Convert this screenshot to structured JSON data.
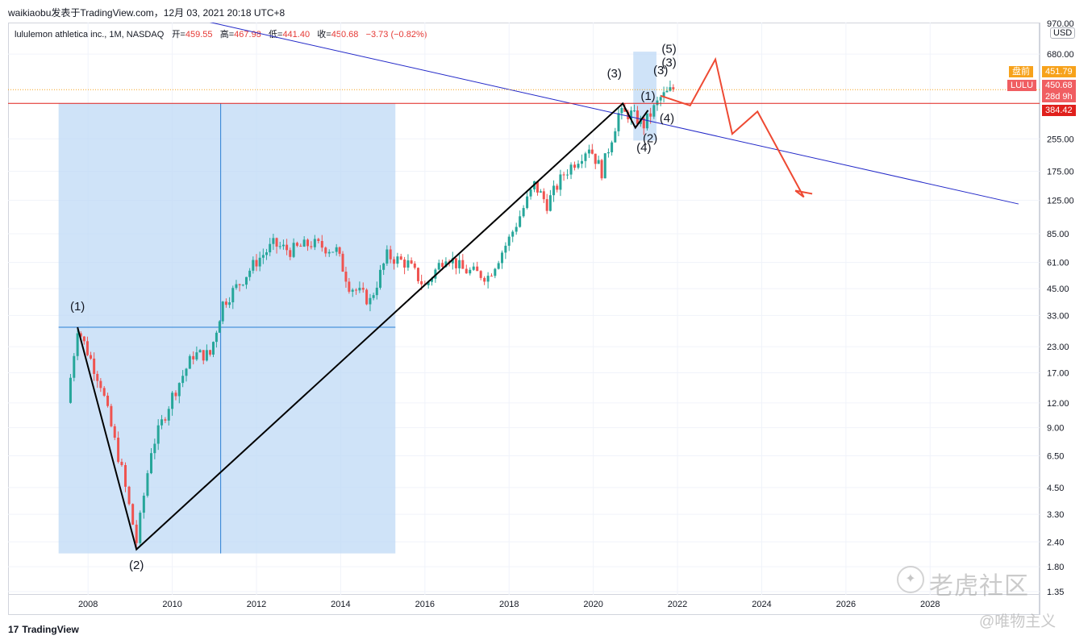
{
  "header": {
    "publish_line": "waikiaobu发表于TradingView.com，12月 03, 2021 20:18 UTC+8"
  },
  "symbol": {
    "name": "lululemon athletica inc., 1M, NASDAQ",
    "open_label": "开=",
    "open_value": "459.55",
    "high_label": "高=",
    "high_value": "467.98",
    "low_label": "低=",
    "low_value": "441.40",
    "close_label": "收=",
    "close_value": "450.68",
    "change": "−3.73 (−0.82%)"
  },
  "price_tags": {
    "premarket_label": "盘前",
    "premarket_value": "451.79",
    "ticker_label": "LULU",
    "ticker_value": "450.68",
    "countdown": "28d 9h",
    "line_value": "384.42"
  },
  "axis": {
    "currency": "USD",
    "y_ticks": [
      "970.00",
      "680.00",
      "255.00",
      "175.00",
      "125.00",
      "85.00",
      "61.00",
      "45.00",
      "33.00",
      "23.00",
      "17.00",
      "12.00",
      "9.00",
      "6.50",
      "4.50",
      "3.30",
      "2.40",
      "1.80",
      "1.35"
    ],
    "x_ticks": [
      "2008",
      "2010",
      "2012",
      "2014",
      "2016",
      "2018",
      "2020",
      "2022",
      "2024",
      "2026",
      "2028"
    ]
  },
  "wave_labels": [
    "(1)",
    "(2)",
    "(3)",
    "(4)",
    "(1)",
    "(2)",
    "(3)",
    "(4)",
    "(5)",
    "(3)"
  ],
  "footer": {
    "brand": "TradingView",
    "brand_mark": "17"
  },
  "watermark": {
    "main": "老虎社区",
    "sub": "@唯物主义"
  },
  "colors": {
    "up": "#26a69a",
    "down": "#ef5350",
    "trend_line": "#2228c8",
    "horizontal_line": "#e0201c",
    "wave_path": "#000000",
    "projection": "#ee4a33",
    "range_box": "#bbd7f5",
    "premarket": "#f7a21b",
    "ticker": "#f05e62"
  },
  "chart_data": {
    "type": "candlestick",
    "title": "",
    "y_scale": "log",
    "ylim": [
      1.3,
      980
    ],
    "xlim": [
      2006.1,
      2030.6
    ],
    "horizontal_line_value": 384.42,
    "current_price": 450.68,
    "trend_line": [
      [
        2010.3,
        1050
      ],
      [
        2030.1,
        120
      ]
    ],
    "wave_path": [
      [
        2007.75,
        28.8
      ],
      [
        2009.15,
        2.2
      ],
      [
        2020.7,
        384
      ],
      [
        2021.0,
        290
      ],
      [
        2021.3,
        355
      ]
    ],
    "projection_path": [
      [
        2021.6,
        420
      ],
      [
        2022.3,
        375
      ],
      [
        2022.9,
        640
      ],
      [
        2023.3,
        270
      ],
      [
        2023.9,
        350
      ],
      [
        2025.0,
        130
      ],
      [
        2024.8,
        140
      ],
      [
        2025.2,
        135
      ]
    ],
    "range_box": {
      "x": [
        2007.3,
        2015.3
      ],
      "y": [
        2.1,
        384
      ]
    },
    "range_cross": {
      "x": 2011.15,
      "y": 28.8
    },
    "wave_marks": [
      {
        "label": "(1)",
        "x": 2007.75,
        "y": 35
      },
      {
        "label": "(2)",
        "x": 2009.15,
        "y": 1.75
      },
      {
        "label": "(3)",
        "x": 2020.5,
        "y": 520
      },
      {
        "label": "(4)",
        "x": 2021.2,
        "y": 220
      },
      {
        "label": "(1)",
        "x": 2021.3,
        "y": 400
      },
      {
        "label": "(2)",
        "x": 2021.35,
        "y": 245
      },
      {
        "label": "(3)",
        "x": 2021.6,
        "y": 540
      },
      {
        "label": "(4)",
        "x": 2021.75,
        "y": 310
      },
      {
        "label": "(5)",
        "x": 2021.8,
        "y": 690
      },
      {
        "label": "(3)",
        "x": 2021.8,
        "y": 590
      }
    ],
    "key_points": [
      {
        "x": 2007.5,
        "y": 12
      },
      {
        "x": 2007.75,
        "y": 28.8
      },
      {
        "x": 2008.3,
        "y": 15
      },
      {
        "x": 2008.8,
        "y": 5.5
      },
      {
        "x": 2009.15,
        "y": 2.4
      },
      {
        "x": 2009.5,
        "y": 7
      },
      {
        "x": 2010.0,
        "y": 13
      },
      {
        "x": 2010.5,
        "y": 21
      },
      {
        "x": 2010.9,
        "y": 21
      },
      {
        "x": 2011.2,
        "y": 38
      },
      {
        "x": 2011.6,
        "y": 48
      },
      {
        "x": 2012.0,
        "y": 62
      },
      {
        "x": 2012.4,
        "y": 75
      },
      {
        "x": 2012.8,
        "y": 70
      },
      {
        "x": 2013.3,
        "y": 76
      },
      {
        "x": 2013.9,
        "y": 70
      },
      {
        "x": 2014.2,
        "y": 47
      },
      {
        "x": 2014.7,
        "y": 39
      },
      {
        "x": 2015.1,
        "y": 66
      },
      {
        "x": 2015.6,
        "y": 60
      },
      {
        "x": 2016.0,
        "y": 46
      },
      {
        "x": 2016.5,
        "y": 67
      },
      {
        "x": 2016.9,
        "y": 56
      },
      {
        "x": 2017.5,
        "y": 52
      },
      {
        "x": 2018.0,
        "y": 80
      },
      {
        "x": 2018.6,
        "y": 150
      },
      {
        "x": 2018.9,
        "y": 120
      },
      {
        "x": 2019.3,
        "y": 170
      },
      {
        "x": 2019.9,
        "y": 235
      },
      {
        "x": 2020.2,
        "y": 175
      },
      {
        "x": 2020.6,
        "y": 340
      },
      {
        "x": 2020.9,
        "y": 340
      },
      {
        "x": 2021.2,
        "y": 300
      },
      {
        "x": 2021.6,
        "y": 410
      },
      {
        "x": 2021.9,
        "y": 455
      }
    ]
  }
}
